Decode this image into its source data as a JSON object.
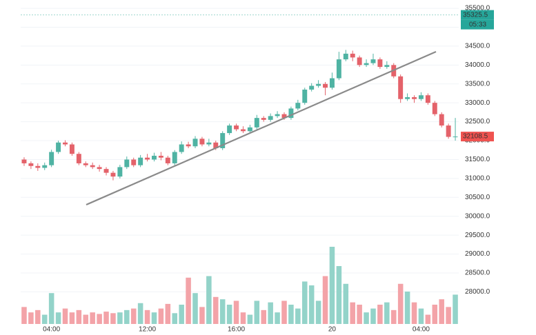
{
  "chart_data": {
    "type": "candlestick",
    "categories": [
      null,
      null,
      null,
      null,
      "04:00",
      null,
      null,
      null,
      null,
      null,
      null,
      null,
      null,
      null,
      null,
      null,
      null,
      null,
      "12:00",
      null,
      null,
      null,
      null,
      null,
      null,
      null,
      null,
      null,
      null,
      null,
      null,
      "16:00",
      null,
      null,
      null,
      null,
      null,
      null,
      null,
      null,
      null,
      null,
      null,
      null,
      null,
      "20",
      null,
      null,
      null,
      null,
      null,
      null,
      null,
      null,
      null,
      null,
      null,
      null,
      "04:00",
      null,
      null,
      null,
      null,
      null
    ],
    "open": [
      31500,
      31400,
      31330,
      31280,
      31350,
      31700,
      31950,
      31900,
      31650,
      31400,
      31350,
      31300,
      31250,
      31150,
      31050,
      31300,
      31500,
      31350,
      31550,
      31500,
      31600,
      31550,
      31400,
      31700,
      31900,
      31850,
      32050,
      31900,
      31950,
      31800,
      32200,
      32400,
      32300,
      32250,
      32350,
      32600,
      32550,
      32650,
      32700,
      32600,
      32850,
      33000,
      33350,
      33450,
      33500,
      33400,
      33650,
      34150,
      34300,
      34200,
      34000,
      34050,
      34150,
      33950,
      34000,
      33700,
      33100,
      33150,
      33100,
      33200,
      33000,
      32700,
      32400,
      32100
    ],
    "close": [
      31400,
      31330,
      31280,
      31350,
      31700,
      31950,
      31900,
      31650,
      31400,
      31350,
      31300,
      31250,
      31150,
      31050,
      31300,
      31500,
      31350,
      31550,
      31500,
      31600,
      31550,
      31400,
      31700,
      31900,
      31850,
      32050,
      31900,
      31950,
      31800,
      32200,
      32400,
      32300,
      32250,
      32350,
      32600,
      32550,
      32650,
      32700,
      32600,
      32850,
      33000,
      33350,
      33450,
      33500,
      33400,
      33650,
      34150,
      34300,
      34200,
      34000,
      34050,
      34150,
      33950,
      34000,
      33700,
      33100,
      33150,
      33100,
      33200,
      33000,
      32700,
      32400,
      32100,
      32108.5
    ],
    "high": [
      31560,
      31450,
      31400,
      31420,
      31760,
      32000,
      32010,
      31950,
      31700,
      31450,
      31420,
      31360,
      31300,
      31200,
      31360,
      31580,
      31550,
      31620,
      31650,
      31680,
      31700,
      31600,
      31750,
      31980,
      31970,
      32120,
      32100,
      32050,
      32000,
      32250,
      32450,
      32450,
      32380,
      32420,
      32680,
      32650,
      32720,
      32780,
      32750,
      32900,
      33080,
      33400,
      33520,
      33600,
      33550,
      33800,
      34350,
      34400,
      34380,
      34250,
      34150,
      34300,
      34200,
      34100,
      34050,
      33750,
      33250,
      33200,
      33280,
      33250,
      33050,
      32750,
      32450,
      32600
    ],
    "low": [
      31330,
      31250,
      31200,
      31220,
      31300,
      31650,
      31850,
      31600,
      31350,
      31300,
      31250,
      31180,
      31080,
      30950,
      31000,
      31250,
      31300,
      31300,
      31450,
      31450,
      31480,
      31350,
      31350,
      31650,
      31800,
      31800,
      31850,
      31850,
      31750,
      31750,
      32150,
      32250,
      32200,
      32200,
      32300,
      32500,
      32500,
      32600,
      32550,
      32550,
      32800,
      32950,
      33300,
      33400,
      33200,
      33350,
      33600,
      34100,
      34100,
      33950,
      33950,
      34000,
      33900,
      33900,
      33650,
      33000,
      33050,
      33000,
      33050,
      32950,
      32650,
      32350,
      32050,
      32000
    ],
    "volume": [
      22,
      15,
      18,
      12,
      40,
      15,
      20,
      15,
      18,
      12,
      15,
      13,
      16,
      14,
      15,
      18,
      20,
      27,
      18,
      15,
      20,
      26,
      14,
      25,
      60,
      40,
      22,
      62,
      35,
      32,
      25,
      30,
      15,
      12,
      30,
      18,
      28,
      15,
      30,
      25,
      20,
      55,
      50,
      30,
      62,
      100,
      75,
      52,
      28,
      25,
      15,
      20,
      25,
      28,
      18,
      52,
      42,
      28,
      20,
      12,
      25,
      32,
      22,
      38
    ],
    "colors": {
      "up": "#4fb3a3",
      "down": "#e4626a",
      "up_volume": "#93d3c9",
      "down_volume": "#f3a3a8"
    },
    "ylim": [
      26950,
      35720
    ],
    "yticks": [
      {
        "value": 28000,
        "label": "28000.0"
      },
      {
        "value": 28500,
        "label": "28500.0"
      },
      {
        "value": 29000,
        "label": "29000.0"
      },
      {
        "value": 29500,
        "label": "29500.0"
      },
      {
        "value": 30000,
        "label": "30000.0"
      },
      {
        "value": 30500,
        "label": "30500.0"
      },
      {
        "value": 31000,
        "label": "31000.0"
      },
      {
        "value": 31500,
        "label": "31500.0"
      },
      {
        "value": 32000,
        "label": "32000.0"
      },
      {
        "value": 32500,
        "label": "32500.0"
      },
      {
        "value": 33000,
        "label": "33000.0"
      },
      {
        "value": 33500,
        "label": "33500.0"
      },
      {
        "value": 34000,
        "label": "34000.0"
      },
      {
        "value": 34500,
        "label": "34500.0"
      },
      {
        "value": 35000,
        "label": "35000.0"
      },
      {
        "value": 35500,
        "label": "35500.0"
      }
    ],
    "grid": true,
    "marker_price": 35325.5,
    "marker_time": "05:33",
    "last_price": 32108.5
  }
}
